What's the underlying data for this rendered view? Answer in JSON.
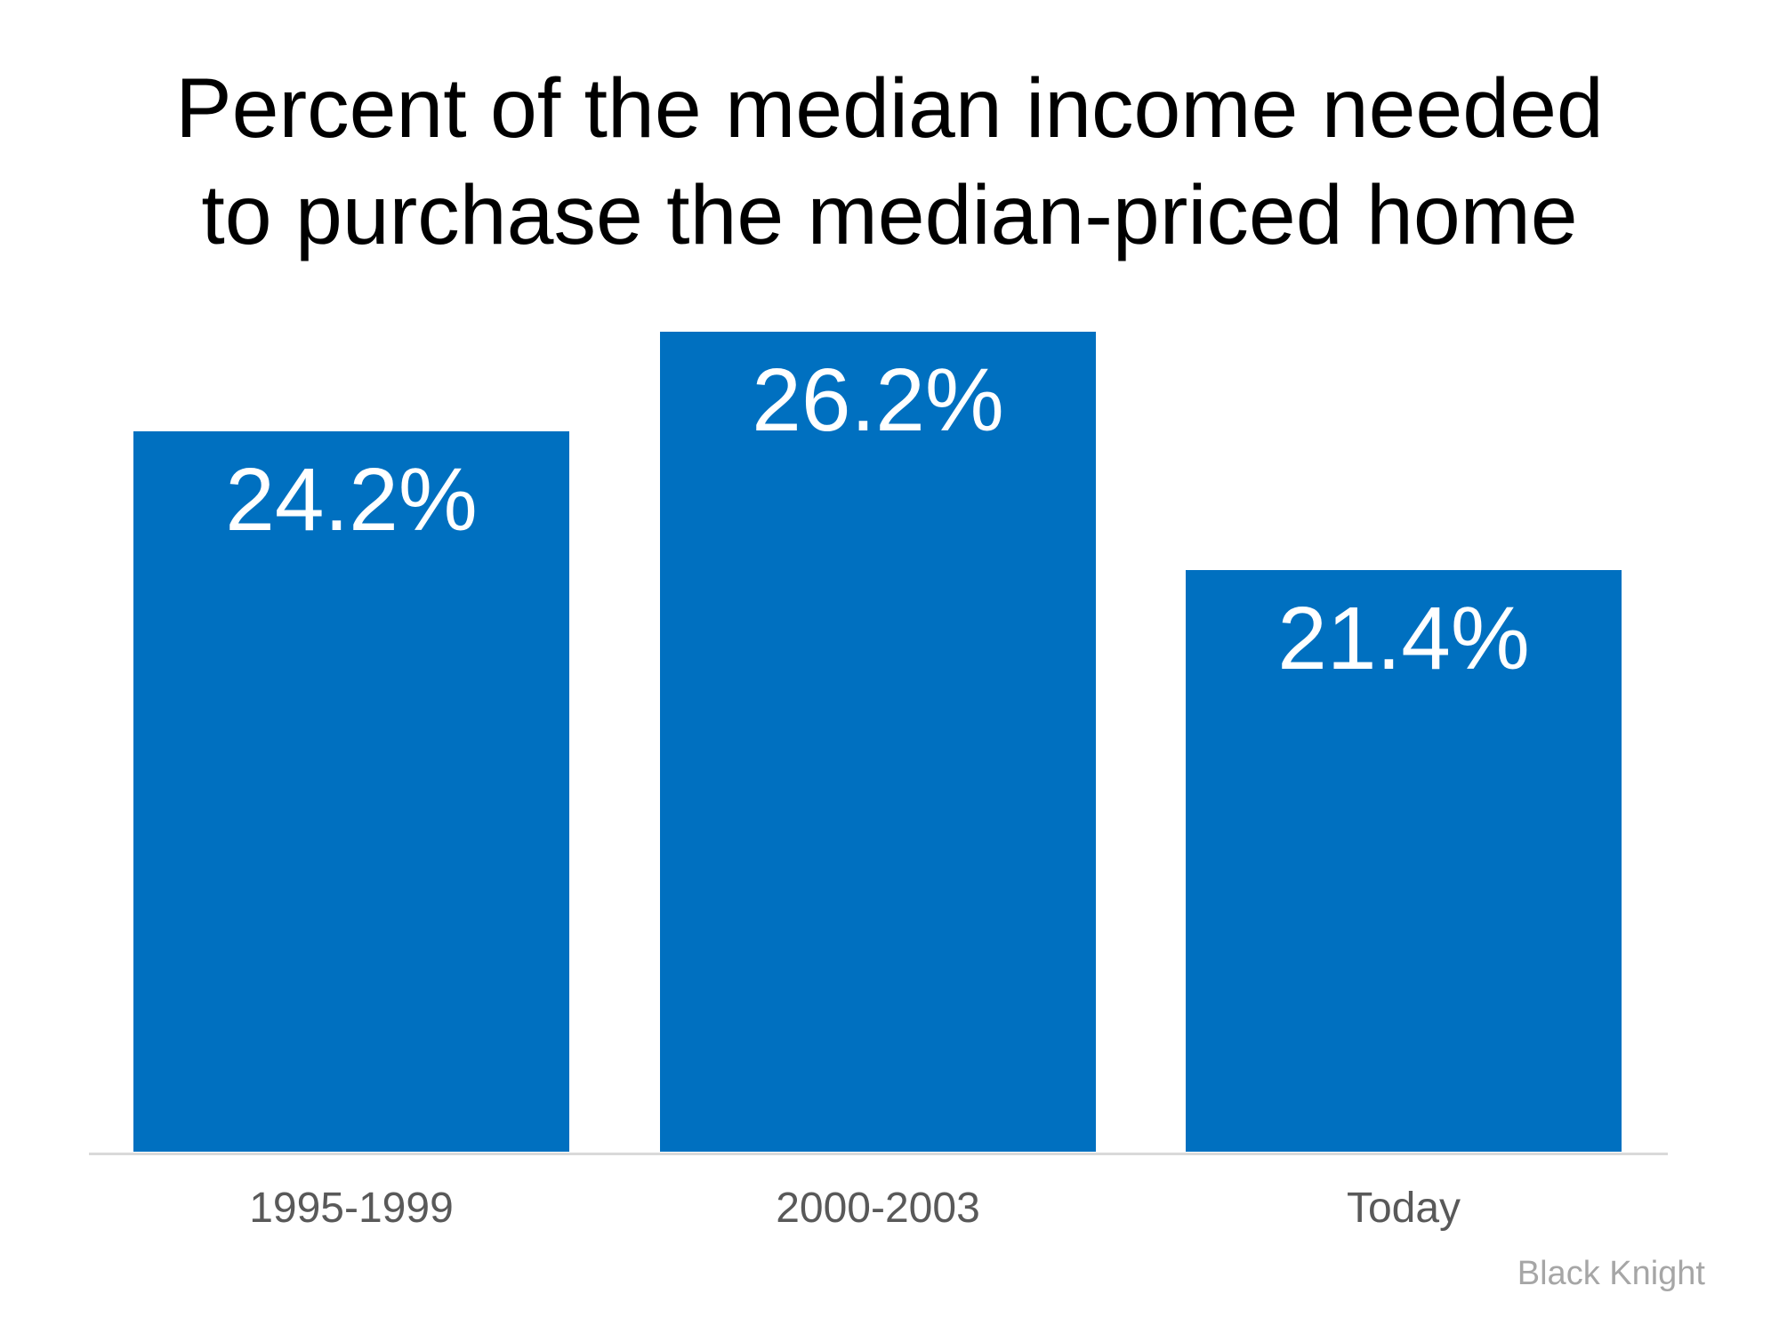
{
  "slide": {
    "title": "Percent of the median income needed\nto purchase the median-priced home",
    "source": "Black Knight"
  },
  "chart_data": {
    "type": "bar",
    "title": "Percent of the median income needed to purchase the median-priced home",
    "categories": [
      "1995-1999",
      "2000-2003",
      "Today"
    ],
    "values": [
      24.2,
      26.2,
      21.4
    ],
    "value_labels": [
      "24.2%",
      "26.2%",
      "21.4%"
    ],
    "xlabel": "",
    "ylabel": "",
    "ylim": [
      9.7,
      27.7
    ],
    "grid": false,
    "legend": false,
    "bar_color": "#0070C0",
    "value_label_color": "#FFFFFF",
    "category_label_color": "#595959",
    "axis_line_color": "#D9D9D9",
    "source_color": "#A6A6A6",
    "background_color": "#FFFFFF",
    "title_color": "#000000"
  }
}
